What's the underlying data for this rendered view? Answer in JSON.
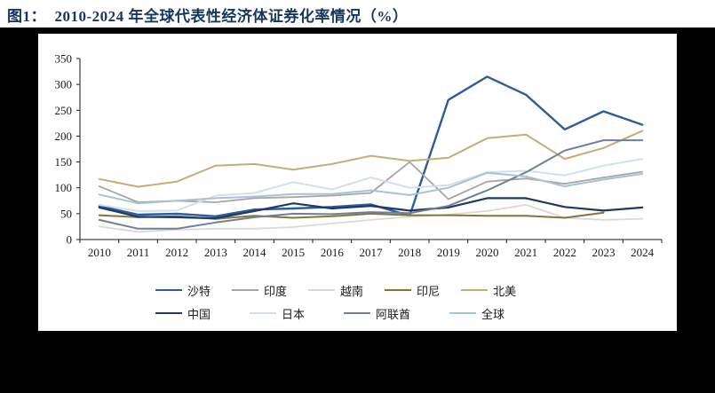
{
  "header": {
    "title": "图1：  2010-2024 年全球代表性经济体证券化率情况（%）"
  },
  "colors": {
    "title_text": "#17365d",
    "page_background": "#000000",
    "panel_background": "#ffffff",
    "axis": "#1a1a1a",
    "tick_label": "#1a1a1a"
  },
  "chart_data": {
    "type": "line",
    "title": "2010-2024 年全球代表性经济体证券化率情况（%）",
    "xlabel": "",
    "ylabel": "",
    "x": [
      2010,
      2011,
      2012,
      2013,
      2014,
      2015,
      2016,
      2017,
      2018,
      2019,
      2020,
      2021,
      2022,
      2023,
      2024
    ],
    "ylim": [
      0,
      350
    ],
    "yticks": [
      0,
      50,
      100,
      150,
      200,
      250,
      300,
      350
    ],
    "grid": false,
    "legend_position": "bottom",
    "legend_rows": [
      [
        0,
        1,
        2,
        3,
        4
      ],
      [
        5,
        6,
        7,
        8
      ]
    ],
    "series": [
      {
        "name": "沙特",
        "color": "#2e5c9a",
        "width": 2.4,
        "values": [
          65,
          48,
          50,
          45,
          58,
          60,
          63,
          68,
          46,
          270,
          315,
          280,
          213,
          248,
          222
        ]
      },
      {
        "name": "印度",
        "color": "#a6a6a6",
        "width": 1.8,
        "values": [
          103,
          72,
          75,
          72,
          80,
          82,
          85,
          90,
          150,
          78,
          112,
          118,
          108,
          120,
          131
        ]
      },
      {
        "name": "越南",
        "color": "#d9d9d9",
        "width": 1.8,
        "values": [
          25,
          15,
          19,
          21,
          21,
          24,
          31,
          38,
          44,
          48,
          55,
          67,
          42,
          38,
          40
        ]
      },
      {
        "name": "印尼",
        "color": "#867539",
        "width": 2.0,
        "values": [
          47,
          43,
          45,
          40,
          46,
          42,
          45,
          50,
          47,
          47,
          46,
          46,
          42,
          52,
          null
        ]
      },
      {
        "name": "北美",
        "color": "#c1af79",
        "width": 2.0,
        "values": [
          117,
          102,
          112,
          143,
          146,
          135,
          146,
          162,
          152,
          158,
          196,
          203,
          156,
          177,
          210
        ]
      },
      {
        "name": "中国",
        "color": "#1f3864",
        "width": 2.2,
        "values": [
          62,
          44,
          43,
          41,
          55,
          70,
          60,
          65,
          56,
          62,
          80,
          80,
          63,
          56,
          62
        ]
      },
      {
        "name": "日本",
        "color": "#cfe0f1",
        "width": 2.0,
        "values": [
          67,
          55,
          56,
          85,
          90,
          111,
          97,
          120,
          100,
          105,
          130,
          133,
          124,
          143,
          156
        ]
      },
      {
        "name": "阿联酋",
        "color": "#6f8096",
        "width": 2.0,
        "values": [
          38,
          21,
          21,
          33,
          43,
          50,
          49,
          53,
          51,
          65,
          95,
          130,
          172,
          192,
          192
        ]
      },
      {
        "name": "全球",
        "color": "#a6c3d5",
        "width": 2.0,
        "values": [
          87,
          70,
          75,
          80,
          83,
          88,
          88,
          95,
          86,
          100,
          129,
          122,
          103,
          116,
          127
        ]
      }
    ]
  }
}
